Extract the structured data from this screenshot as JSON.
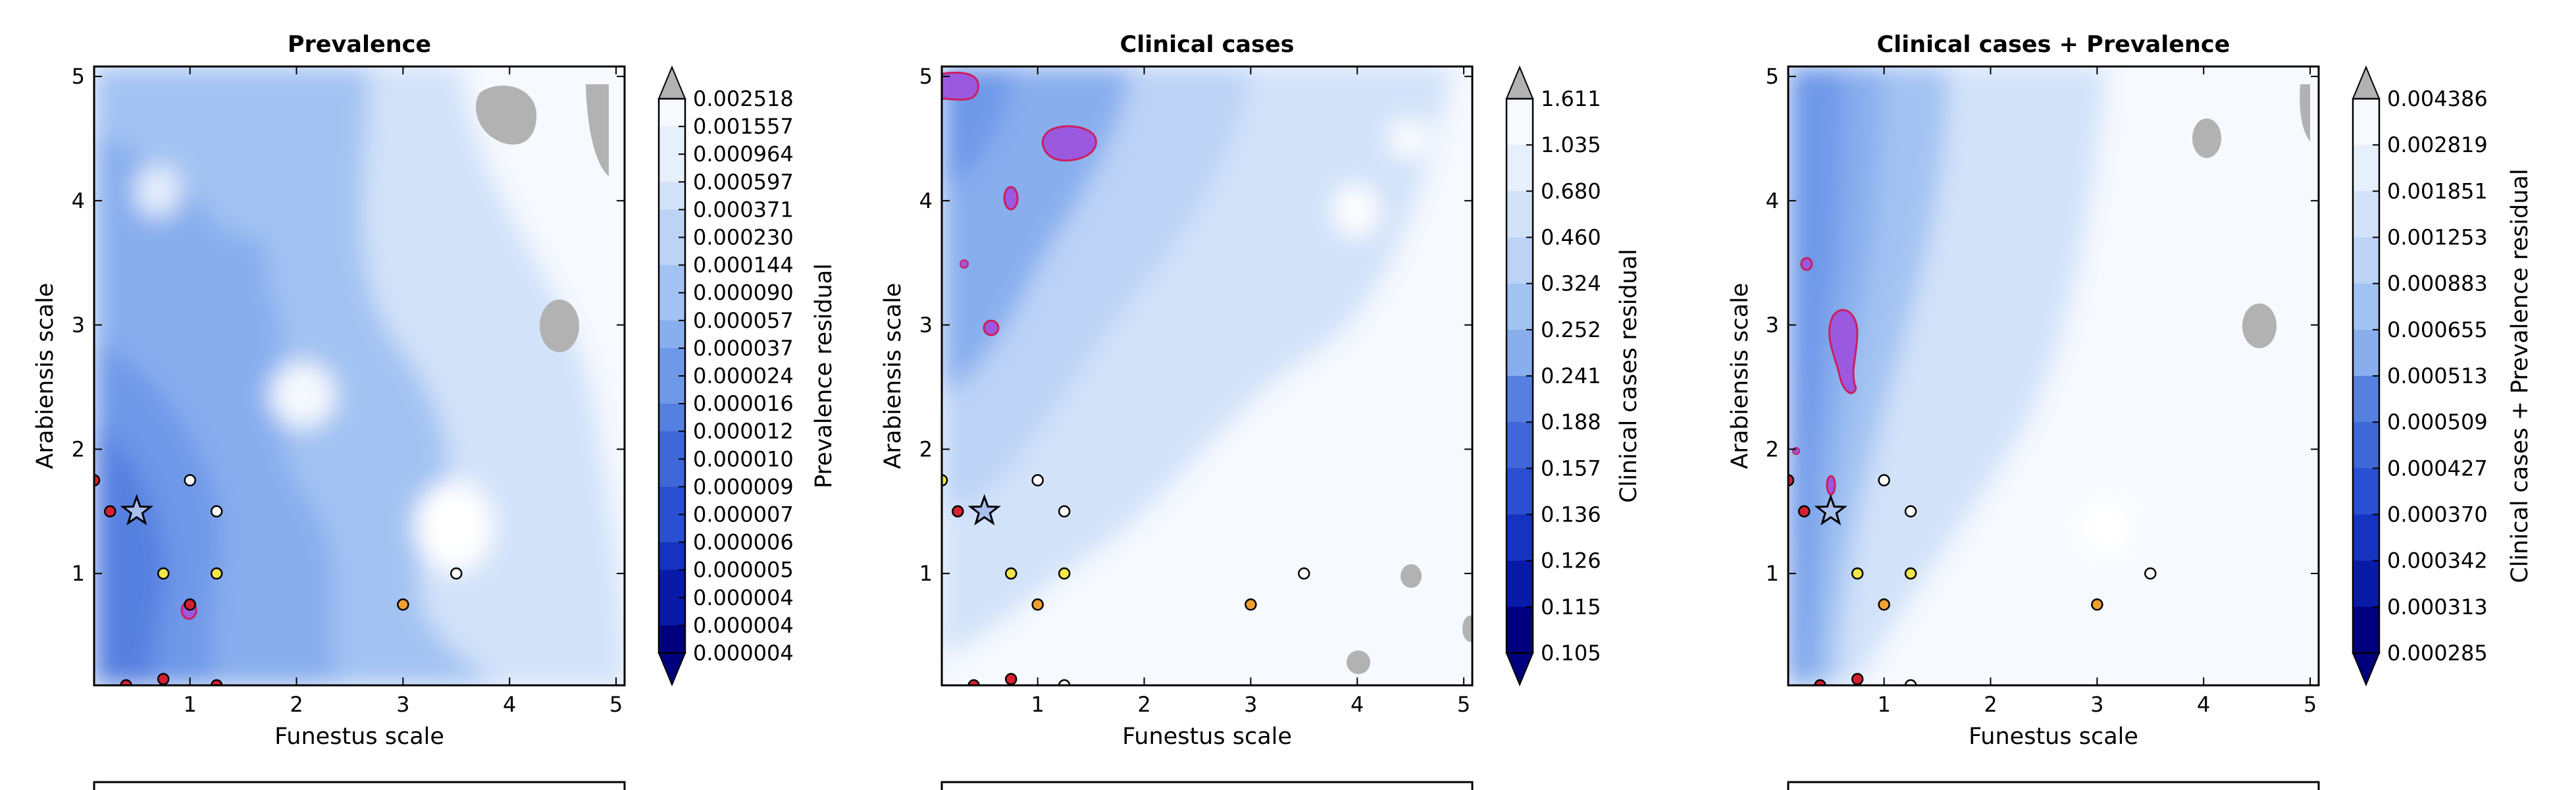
{
  "colors": {
    "levels": [
      "#00007f",
      "#0a1aa8",
      "#1533c0",
      "#2a4fd0",
      "#3f67d8",
      "#5680e0",
      "#6e98e8",
      "#88aeee",
      "#a2c2f2",
      "#bcd3f6",
      "#d2e2f9",
      "#e6effc",
      "#f6f9fe",
      "#ffffff"
    ],
    "over": "#b2b2b2",
    "positive_region": "#9b59e0",
    "positive_edge": "#cc1f5e",
    "marker_red": "#d62030",
    "marker_yellow": "#f2e64a",
    "marker_orange": "#f0a030",
    "marker_white": "#ffffff"
  },
  "chart_data": [
    {
      "type": "heatmap",
      "title": "Prevalence",
      "xlabel": "Funestus scale",
      "ylabel": "Arabiensis scale",
      "xlim": [
        0.1,
        5.08
      ],
      "ylim": [
        0.1,
        5.08
      ],
      "xticks": [
        "1",
        "2",
        "3",
        "4",
        "5"
      ],
      "yticks": [
        "1",
        "2",
        "3",
        "4",
        "5"
      ],
      "colorbar_label": "Prevalence residual",
      "colorbar_ticks": [
        "0.002518",
        "0.001557",
        "0.000964",
        "0.000597",
        "0.000371",
        "0.000230",
        "0.000144",
        "0.000090",
        "0.000057",
        "0.000037",
        "0.000024",
        "0.000016",
        "0.000012",
        "0.000010",
        "0.000009",
        "0.000007",
        "0.000006",
        "0.000005",
        "0.000004",
        "0.000004",
        "0.000004"
      ],
      "markers": [
        {
          "x": 0.1,
          "y": 1.75,
          "color": "marker_red"
        },
        {
          "x": 0.25,
          "y": 1.5,
          "color": "marker_red"
        },
        {
          "x": 1.0,
          "y": 1.75,
          "color": "marker_white"
        },
        {
          "x": 1.25,
          "y": 1.5,
          "color": "marker_white"
        },
        {
          "x": 0.75,
          "y": 1.0,
          "color": "marker_yellow"
        },
        {
          "x": 1.25,
          "y": 1.0,
          "color": "marker_yellow"
        },
        {
          "x": 1.0,
          "y": 0.75,
          "color": "marker_red"
        },
        {
          "x": 3.0,
          "y": 0.75,
          "color": "marker_orange"
        },
        {
          "x": 3.5,
          "y": 1.0,
          "color": "marker_white"
        },
        {
          "x": 0.75,
          "y": 0.15,
          "color": "marker_red"
        },
        {
          "x": 0.4,
          "y": 0.1,
          "color": "marker_red"
        },
        {
          "x": 1.25,
          "y": 0.1,
          "color": "marker_red"
        }
      ],
      "star": {
        "x": 0.5,
        "y": 1.5
      }
    },
    {
      "type": "heatmap",
      "title": "Clinical cases",
      "xlabel": "Funestus scale",
      "ylabel": "Arabiensis scale",
      "xlim": [
        0.1,
        5.08
      ],
      "ylim": [
        0.1,
        5.08
      ],
      "xticks": [
        "1",
        "2",
        "3",
        "4",
        "5"
      ],
      "yticks": [
        "1",
        "2",
        "3",
        "4",
        "5"
      ],
      "colorbar_label": "Clinical cases residual",
      "colorbar_ticks": [
        "1.611",
        "1.035",
        "0.680",
        "0.460",
        "0.324",
        "0.252",
        "0.241",
        "0.188",
        "0.157",
        "0.136",
        "0.126",
        "0.115",
        "0.105"
      ],
      "markers": [
        {
          "x": 0.1,
          "y": 1.75,
          "color": "marker_yellow"
        },
        {
          "x": 0.25,
          "y": 1.5,
          "color": "marker_red"
        },
        {
          "x": 1.0,
          "y": 1.75,
          "color": "marker_white"
        },
        {
          "x": 1.25,
          "y": 1.5,
          "color": "marker_white"
        },
        {
          "x": 0.75,
          "y": 1.0,
          "color": "marker_yellow"
        },
        {
          "x": 1.25,
          "y": 1.0,
          "color": "marker_yellow"
        },
        {
          "x": 1.0,
          "y": 0.75,
          "color": "marker_orange"
        },
        {
          "x": 3.0,
          "y": 0.75,
          "color": "marker_orange"
        },
        {
          "x": 3.5,
          "y": 1.0,
          "color": "marker_white"
        },
        {
          "x": 0.75,
          "y": 0.15,
          "color": "marker_red"
        },
        {
          "x": 0.4,
          "y": 0.1,
          "color": "marker_red"
        },
        {
          "x": 1.25,
          "y": 0.1,
          "color": "marker_white"
        }
      ],
      "star": {
        "x": 0.5,
        "y": 1.5
      }
    },
    {
      "type": "heatmap",
      "title": "Clinical cases + Prevalence",
      "xlabel": "Funestus scale",
      "ylabel": "Arabiensis scale",
      "xlim": [
        0.1,
        5.08
      ],
      "ylim": [
        0.1,
        5.08
      ],
      "xticks": [
        "1",
        "2",
        "3",
        "4",
        "5"
      ],
      "yticks": [
        "1",
        "2",
        "3",
        "4",
        "5"
      ],
      "colorbar_label": "Clinical cases + Prevalence residual",
      "colorbar_ticks": [
        "0.004386",
        "0.002819",
        "0.001851",
        "0.001253",
        "0.000883",
        "0.000655",
        "0.000513",
        "0.000509",
        "0.000427",
        "0.000370",
        "0.000342",
        "0.000313",
        "0.000285"
      ],
      "markers": [
        {
          "x": 0.1,
          "y": 1.75,
          "color": "marker_red"
        },
        {
          "x": 0.25,
          "y": 1.5,
          "color": "marker_red"
        },
        {
          "x": 1.0,
          "y": 1.75,
          "color": "marker_white"
        },
        {
          "x": 1.25,
          "y": 1.5,
          "color": "marker_white"
        },
        {
          "x": 0.75,
          "y": 1.0,
          "color": "marker_yellow"
        },
        {
          "x": 1.25,
          "y": 1.0,
          "color": "marker_yellow"
        },
        {
          "x": 1.0,
          "y": 0.75,
          "color": "marker_orange"
        },
        {
          "x": 3.0,
          "y": 0.75,
          "color": "marker_orange"
        },
        {
          "x": 3.5,
          "y": 1.0,
          "color": "marker_white"
        },
        {
          "x": 0.75,
          "y": 0.15,
          "color": "marker_red"
        },
        {
          "x": 0.4,
          "y": 0.1,
          "color": "marker_red"
        },
        {
          "x": 1.25,
          "y": 0.1,
          "color": "marker_white"
        }
      ],
      "star": {
        "x": 0.5,
        "y": 1.5
      }
    }
  ]
}
